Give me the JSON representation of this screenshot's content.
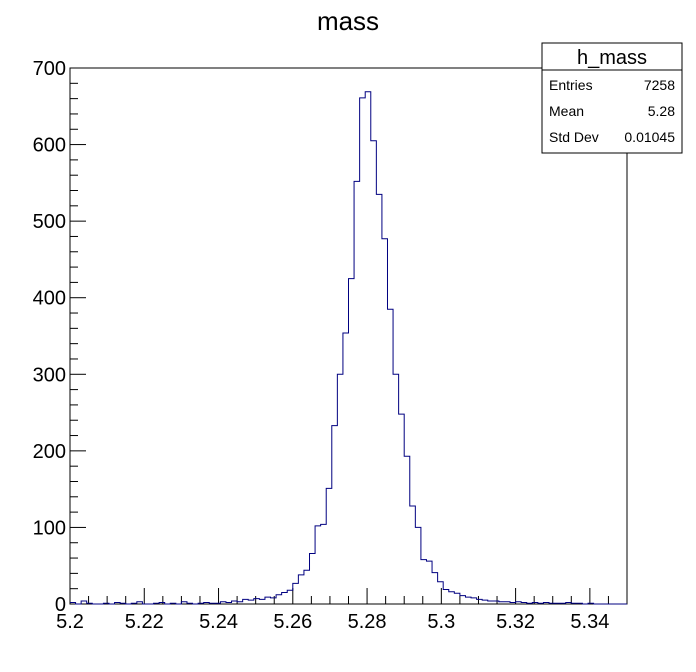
{
  "chart_data": {
    "type": "histogram",
    "title": "mass",
    "xlabel": "",
    "ylabel": "",
    "xlim": [
      5.2,
      5.35
    ],
    "ylim": [
      0,
      700
    ],
    "x_ticks": [
      "5.2",
      "5.22",
      "5.24",
      "5.26",
      "5.28",
      "5.3",
      "5.32",
      "5.34"
    ],
    "x_tick_values": [
      5.2,
      5.22,
      5.24,
      5.26,
      5.28,
      5.3,
      5.32,
      5.34
    ],
    "y_ticks": [
      "0",
      "100",
      "200",
      "300",
      "400",
      "500",
      "600",
      "700"
    ],
    "y_tick_values": [
      0,
      100,
      200,
      300,
      400,
      500,
      600,
      700
    ],
    "grid": false,
    "line_color": "#000080",
    "bins": {
      "x_start": 5.2,
      "bin_width": 0.0015,
      "values": [
        2,
        0,
        4,
        1,
        0,
        0,
        1,
        0,
        2,
        1,
        0,
        1,
        3,
        0,
        0,
        1,
        2,
        0,
        1,
        0,
        3,
        1,
        0,
        1,
        2,
        1,
        1,
        3,
        2,
        4,
        3,
        6,
        5,
        7,
        6,
        9,
        8,
        12,
        15,
        18,
        27,
        38,
        44,
        66,
        102,
        104,
        151,
        233,
        300,
        354,
        425,
        552,
        661,
        669,
        605,
        535,
        477,
        385,
        300,
        248,
        193,
        128,
        100,
        58,
        56,
        41,
        29,
        19,
        16,
        14,
        11,
        9,
        8,
        6,
        5,
        4,
        4,
        3,
        3,
        2,
        3,
        2,
        1,
        2,
        1,
        2,
        1,
        1,
        1,
        2,
        1,
        1,
        0,
        1,
        0,
        0,
        0,
        0,
        0,
        0
      ]
    },
    "stats_box": {
      "title": "h_mass",
      "rows": [
        {
          "label": "Entries",
          "value": "7258"
        },
        {
          "label": "Mean",
          "value": "5.28"
        },
        {
          "label": "Std Dev",
          "value": "0.01045"
        }
      ]
    }
  }
}
